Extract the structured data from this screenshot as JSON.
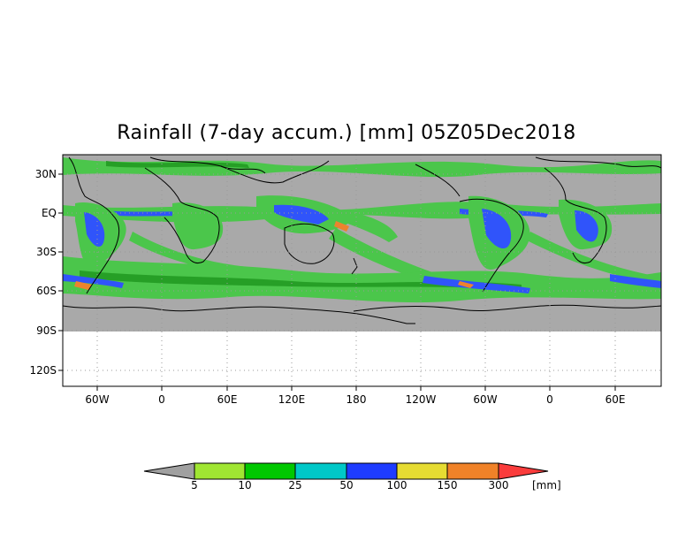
{
  "title": "Rainfall (7-day accum.) [mm] 05Z05Dec2018",
  "y_ticks": [
    "30N",
    "EQ",
    "30S",
    "60S",
    "90S",
    "120S"
  ],
  "x_ticks": [
    "60W",
    "0",
    "60E",
    "120E",
    "180",
    "120W",
    "60W",
    "0",
    "60E"
  ],
  "colorbar": {
    "labels": [
      "5",
      "10",
      "25",
      "50",
      "100",
      "150",
      "300"
    ],
    "unit": "[mm]",
    "colors": [
      "#a0a0a0",
      "#a0e632",
      "#00c800",
      "#00c8c8",
      "#1e3cff",
      "#e6dc32",
      "#f08228",
      "#fa3c3c"
    ]
  },
  "map_colors": {
    "no_rain": "#a9a9a9",
    "light": "#46c846",
    "moderate": "#1f9f1f",
    "heavy": "#2a50ff",
    "very_heavy": "#f08228"
  }
}
